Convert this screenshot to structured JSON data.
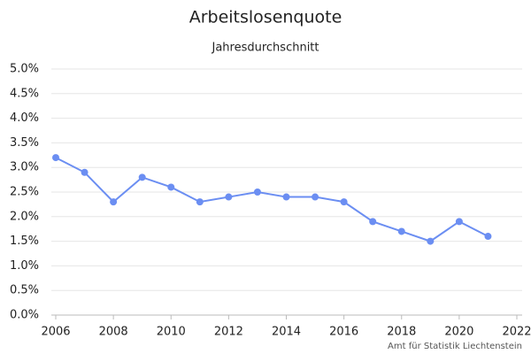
{
  "chart_data": {
    "type": "line",
    "title": "Arbeitslosenquote",
    "subtitle": "Jahresdurchschnitt",
    "credit": "Amt für Statistik Liechtenstein",
    "x": [
      2006,
      2007,
      2008,
      2009,
      2010,
      2011,
      2012,
      2013,
      2014,
      2015,
      2016,
      2017,
      2018,
      2019,
      2020,
      2021
    ],
    "series": [
      {
        "color": "#6b8ef2",
        "values": [
          3.2,
          2.9,
          2.3,
          2.8,
          2.6,
          2.3,
          2.4,
          2.5,
          2.4,
          2.4,
          2.3,
          1.9,
          1.7,
          1.5,
          1.9,
          1.6
        ]
      }
    ],
    "xlim": [
      2006,
      2022
    ],
    "xticks": [
      2006,
      2008,
      2010,
      2012,
      2014,
      2016,
      2018,
      2020,
      2022
    ],
    "ylim": [
      0,
      5
    ],
    "yticks": [
      {
        "value": 0,
        "label": "0.0%"
      },
      {
        "value": 0.5,
        "label": "0.5%"
      },
      {
        "value": 1,
        "label": "1.0%"
      },
      {
        "value": 1.5,
        "label": "1.5%"
      },
      {
        "value": 2,
        "label": "2.0%"
      },
      {
        "value": 2.5,
        "label": "2.5%"
      },
      {
        "value": 3,
        "label": "3.0%"
      },
      {
        "value": 3.5,
        "label": "3.5%"
      },
      {
        "value": 4,
        "label": "4.0%"
      },
      {
        "value": 4.5,
        "label": "4.5%"
      },
      {
        "value": 5,
        "label": "5.0%"
      }
    ],
    "grid": true
  }
}
